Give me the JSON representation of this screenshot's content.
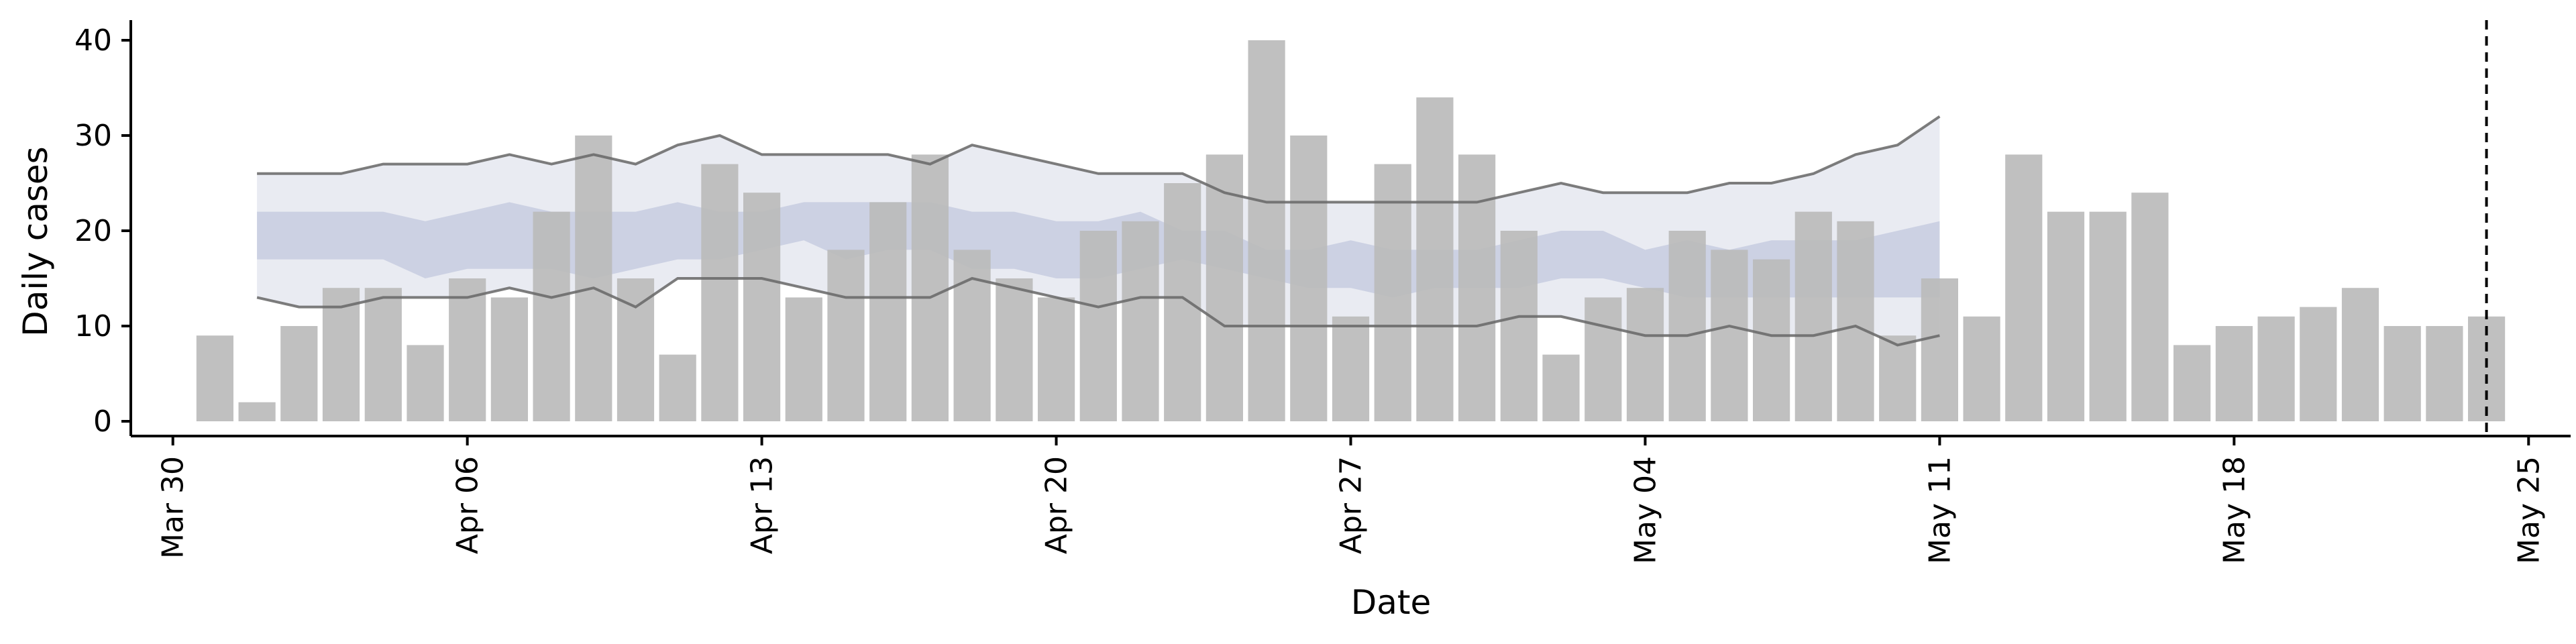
{
  "chart_data": {
    "type": "bar",
    "title": "",
    "xlabel": "Date",
    "ylabel": "Daily cases",
    "ylim": [
      0,
      42
    ],
    "yticks": [
      0,
      10,
      20,
      30,
      40
    ],
    "xlim": [
      "2020-03-29",
      "2020-05-26"
    ],
    "xticks": [
      {
        "date": "2020-03-30",
        "label": "Mar 30"
      },
      {
        "date": "2020-04-06",
        "label": "Apr 06"
      },
      {
        "date": "2020-04-13",
        "label": "Apr 13"
      },
      {
        "date": "2020-04-20",
        "label": "Apr 20"
      },
      {
        "date": "2020-04-27",
        "label": "Apr 27"
      },
      {
        "date": "2020-05-04",
        "label": "May 04"
      },
      {
        "date": "2020-05-11",
        "label": "May 11"
      },
      {
        "date": "2020-05-18",
        "label": "May 18"
      },
      {
        "date": "2020-05-25",
        "label": "May 25"
      }
    ],
    "grid": false,
    "bars": {
      "start_date": "2020-03-31",
      "values": [
        9,
        2,
        10,
        14,
        14,
        8,
        15,
        13,
        22,
        30,
        15,
        7,
        27,
        24,
        13,
        18,
        23,
        28,
        18,
        15,
        13,
        20,
        21,
        25,
        28,
        40,
        30,
        11,
        27,
        34,
        28,
        20,
        7,
        13,
        14,
        20,
        18,
        17,
        22,
        21,
        9,
        15,
        11,
        28,
        22,
        22,
        24,
        8,
        10,
        11,
        12,
        14,
        10,
        10,
        11
      ]
    },
    "intervals": {
      "start_date": "2020-04-01",
      "outer": {
        "lower": [
          13,
          12,
          12,
          13,
          13,
          13,
          14,
          13,
          14,
          12,
          15,
          15,
          15,
          14,
          13,
          13,
          13,
          15,
          14,
          13,
          12,
          13,
          13,
          10,
          10,
          10,
          10,
          10,
          10,
          10,
          11,
          11,
          10,
          9,
          9,
          10,
          9,
          9,
          10,
          8,
          9
        ],
        "upper": [
          26,
          26,
          26,
          27,
          27,
          27,
          28,
          27,
          28,
          27,
          29,
          30,
          28,
          28,
          28,
          28,
          27,
          29,
          28,
          27,
          26,
          26,
          26,
          24,
          23,
          23,
          23,
          23,
          23,
          23,
          24,
          25,
          24,
          24,
          24,
          25,
          25,
          26,
          28,
          29,
          32
        ]
      },
      "inner": {
        "lower": [
          17,
          17,
          17,
          17,
          15,
          16,
          16,
          16,
          15,
          16,
          17,
          17,
          18,
          19,
          17,
          18,
          18,
          16,
          16,
          15,
          15,
          16,
          17,
          16,
          15,
          14,
          14,
          13,
          14,
          14,
          14,
          15,
          15,
          14,
          13,
          13,
          13,
          13,
          13,
          13,
          13
        ],
        "upper": [
          22,
          22,
          22,
          22,
          21,
          22,
          23,
          22,
          22,
          22,
          23,
          22,
          22,
          23,
          23,
          23,
          23,
          22,
          22,
          21,
          21,
          22,
          20,
          20,
          18,
          18,
          19,
          18,
          18,
          18,
          19,
          20,
          20,
          18,
          19,
          18,
          19,
          19,
          19,
          20,
          21
        ]
      }
    },
    "vline_date": "2020-05-24",
    "colors": {
      "bars": "#bbbbbb",
      "outer_band": "#e9ebf2",
      "inner_band": "#c7cde0",
      "interval_lines": "#666666",
      "vline": "#000000",
      "axis": "#000000"
    }
  }
}
